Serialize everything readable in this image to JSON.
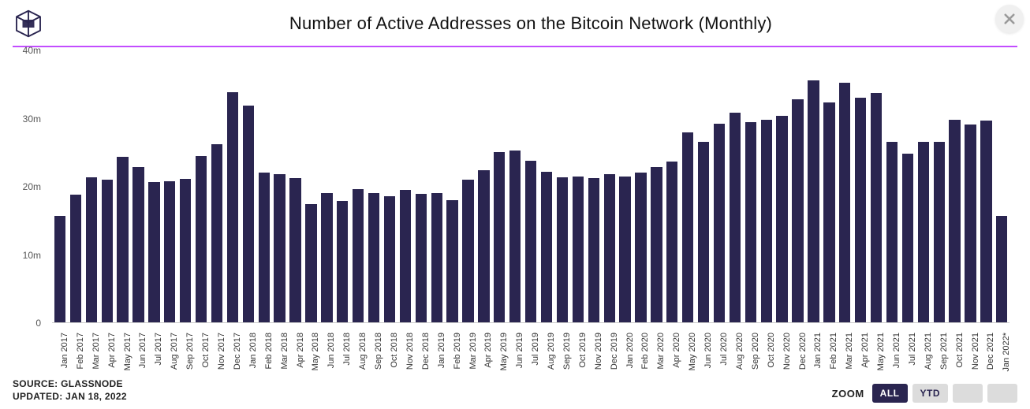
{
  "title": "Number of Active Addresses on the Bitcoin Network (Monthly)",
  "source_label": "SOURCE: GLASSNODE",
  "updated_label": "UPDATED: JAN 18, 2022",
  "zoom_label": "ZOOM",
  "zoom_buttons": [
    "ALL",
    "YTD",
    "",
    ""
  ],
  "zoom_active_index": 0,
  "colors": {
    "bar": "#2a2550",
    "divider": "#c24dff",
    "title": "#111111",
    "axis_text": "#555555",
    "xlabel_text": "#333333",
    "zoom_active_bg": "#2a2550",
    "zoom_active_text": "#ffffff",
    "zoom_inactive_bg": "#dcdcdc",
    "close_bg": "#f0f0f0",
    "close_x": "#9a9a9a",
    "logo_stroke": "#2a2550",
    "background": "#ffffff"
  },
  "chart": {
    "type": "bar",
    "ylim": [
      0,
      40
    ],
    "yticks": [
      0,
      10,
      20,
      30,
      40
    ],
    "ytick_labels": [
      "0",
      "10m",
      "20m",
      "30m",
      "40m"
    ],
    "y_fontsize": 12,
    "x_fontsize": 11,
    "bar_width_ratio": 0.72,
    "categories": [
      "Jan 2017",
      "Feb 2017",
      "Mar 2017",
      "Apr 2017",
      "May 2017",
      "Jun 2017",
      "Jul 2017",
      "Aug 2017",
      "Sep 2017",
      "Oct 2017",
      "Nov 2017",
      "Dec 2017",
      "Jan 2018",
      "Feb 2018",
      "Mar 2018",
      "Apr 2018",
      "May 2018",
      "Jun 2018",
      "Jul 2018",
      "Aug 2018",
      "Sep 2018",
      "Oct 2018",
      "Nov 2018",
      "Dec 2018",
      "Jan 2019",
      "Feb 2019",
      "Mar 2019",
      "Apr 2019",
      "May 2019",
      "Jun 2019",
      "Jul 2019",
      "Aug 2019",
      "Sep 2019",
      "Oct 2019",
      "Nov 2019",
      "Dec 2019",
      "Jan 2020",
      "Feb 2020",
      "Mar 2020",
      "Apr 2020",
      "May 2020",
      "Jun 2020",
      "Jul 2020",
      "Aug 2020",
      "Sep 2020",
      "Oct 2020",
      "Nov 2020",
      "Dec 2020",
      "Jan 2021",
      "Feb 2021",
      "Mar 2021",
      "Apr 2021",
      "May 2021",
      "Jun 2021",
      "Jul 2021",
      "Aug 2021",
      "Sep 2021",
      "Oct 2021",
      "Nov 2021",
      "Dec 2021",
      "Jan 2022*"
    ],
    "values": [
      15.6,
      18.8,
      21.3,
      21.0,
      24.3,
      22.8,
      20.6,
      20.8,
      21.1,
      24.5,
      26.2,
      33.8,
      31.9,
      22.0,
      21.8,
      21.2,
      17.4,
      19.0,
      17.8,
      19.6,
      19.0,
      18.5,
      19.5,
      18.9,
      19.0,
      18.0,
      21.0,
      22.4,
      25.0,
      25.3,
      23.8,
      22.2,
      21.3,
      21.4,
      21.2,
      21.8,
      21.5,
      22.0,
      22.8,
      23.6,
      28.0,
      26.5,
      29.2,
      30.9,
      29.5,
      29.8,
      30.4,
      32.8,
      35.6,
      32.3,
      35.2,
      33.1,
      33.7,
      26.5,
      24.8,
      26.5,
      26.6,
      29.8,
      29.1,
      29.7,
      15.7
    ]
  }
}
